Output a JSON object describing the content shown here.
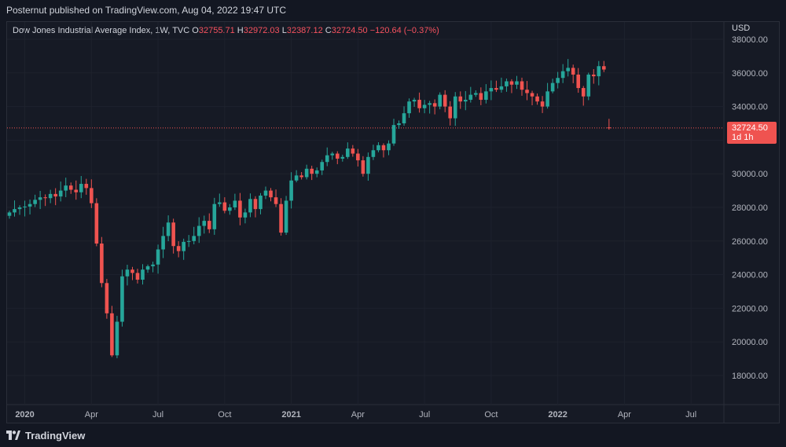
{
  "header": {
    "published": "Posternut published on TradingView.com, Aug 04, 2022 19:47 UTC"
  },
  "legend": {
    "symbol": "Dow Jones Industrial Average Index, 1W, TVC",
    "o_label": "O",
    "o_value": "32755.71",
    "h_label": "H",
    "h_value": "32972.03",
    "l_label": "L",
    "l_value": "32387.12",
    "c_label": "C",
    "c_value": "32724.50",
    "change": "−120.64 (−0.37%)"
  },
  "price_tag": {
    "price": "32724.50",
    "countdown": "1d 1h"
  },
  "footer": {
    "brand": "TradingView"
  },
  "colors": {
    "up": "#26a69a",
    "down": "#ef5350",
    "background": "#131722",
    "grid": "#1e222d"
  },
  "chart_data": {
    "type": "candlestick",
    "currency": "USD",
    "ylim": [
      16000,
      38800
    ],
    "y_ticks": [
      "18000.00",
      "20000.00",
      "22000.00",
      "24000.00",
      "26000.00",
      "28000.00",
      "30000.00",
      "32000.00",
      "34000.00",
      "36000.00",
      "38000.00"
    ],
    "x_ticks": [
      {
        "label": "2020",
        "week": 3,
        "bold": true
      },
      {
        "label": "Apr",
        "week": 16
      },
      {
        "label": "Jul",
        "week": 29
      },
      {
        "label": "Oct",
        "week": 42
      },
      {
        "label": "2021",
        "week": 55,
        "bold": true
      },
      {
        "label": "Apr",
        "week": 68
      },
      {
        "label": "Jul",
        "week": 81
      },
      {
        "label": "Oct",
        "week": 94
      },
      {
        "label": "2022",
        "week": 107,
        "bold": true
      },
      {
        "label": "Apr",
        "week": 120
      },
      {
        "label": "Jul",
        "week": 133
      }
    ],
    "last_price": 32724.5,
    "closes": [
      27700,
      27900,
      28000,
      28050,
      28200,
      28450,
      28600,
      28550,
      28800,
      28650,
      29000,
      29300,
      29050,
      28900,
      29400,
      29150,
      28250,
      25850,
      23500,
      21700,
      19200,
      21200,
      23900,
      24300,
      24100,
      23700,
      24300,
      24500,
      24600,
      25500,
      26300,
      27100,
      25700,
      25400,
      25950,
      26000,
      26300,
      26900,
      27200,
      26700,
      28200,
      28300,
      27800,
      28000,
      28400,
      27400,
      27700,
      28500,
      27900,
      28700,
      29000,
      28600,
      28200,
      26500,
      28400,
      29600,
      29900,
      29800,
      30300,
      30000,
      30200,
      30700,
      31100,
      31200,
      30900,
      31000,
      31500,
      31200,
      30800,
      30000,
      31000,
      31400,
      31700,
      31400,
      31800,
      32900,
      33000,
      33600,
      34300,
      34400,
      33900,
      34100,
      34200,
      34000,
      34700,
      34000,
      33300,
      34600,
      34300,
      34400,
      34700,
      34800,
      34400,
      34900,
      35100,
      35000,
      35200,
      35500,
      35300,
      35500,
      35000,
      34800,
      34600,
      34300,
      34000,
      34900,
      35400,
      35700,
      36100,
      36300,
      35900,
      35100,
      34600,
      35900,
      35800,
      36400,
      36200,
      35600
    ],
    "last_week_index": 133
  }
}
